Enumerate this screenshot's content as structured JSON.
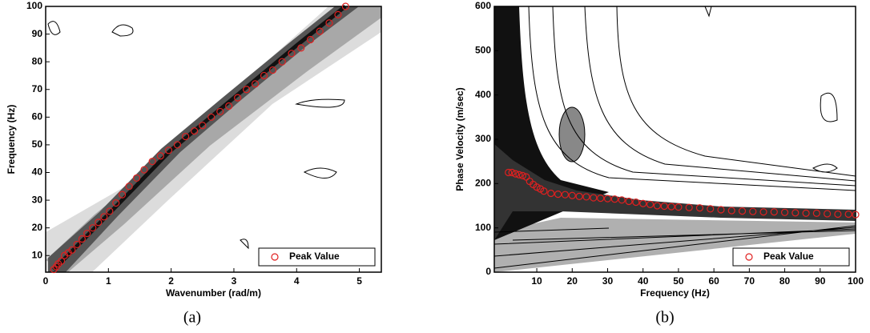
{
  "chart_data": [
    {
      "type": "scatter",
      "caption": "(a)",
      "xlabel": "Wavenumber (rad/m)",
      "ylabel": "Frequency (Hz)",
      "xlim": [
        0,
        5.35
      ],
      "ylim": [
        4,
        100
      ],
      "xticks": [
        0,
        1,
        2,
        3,
        4,
        5
      ],
      "yticks": [
        10,
        20,
        30,
        40,
        50,
        60,
        70,
        80,
        90,
        100
      ],
      "legend": "lower right",
      "series": [
        {
          "name": "Peak Value",
          "color": "#e02020",
          "x": [
            0.13,
            0.17,
            0.2,
            0.25,
            0.3,
            0.36,
            0.42,
            0.5,
            0.58,
            0.66,
            0.75,
            0.84,
            0.93,
            1.02,
            1.12,
            1.22,
            1.33,
            1.45,
            1.57,
            1.7,
            1.83,
            1.96,
            2.1,
            2.23,
            2.37,
            2.5,
            2.64,
            2.78,
            2.92,
            3.06,
            3.2,
            3.34,
            3.48,
            3.62,
            3.77,
            3.92,
            4.07,
            4.22,
            4.37,
            4.52,
            4.66,
            4.78
          ],
          "values": [
            5,
            6,
            7,
            8,
            10,
            11,
            12,
            14,
            16,
            18,
            20,
            22,
            24,
            26,
            29,
            32,
            35,
            38,
            41,
            44,
            46,
            48,
            50,
            53,
            55,
            57,
            60,
            62,
            64,
            67,
            70,
            72,
            75,
            77,
            80,
            83,
            85,
            88,
            91,
            94,
            97,
            100
          ]
        }
      ]
    },
    {
      "type": "scatter",
      "caption": "(b)",
      "xlabel": "Frequency (Hz)",
      "ylabel": "Phase Velocity (m/sec)",
      "xlim": [
        -2,
        100
      ],
      "ylim": [
        0,
        600
      ],
      "xticks": [
        10,
        20,
        30,
        40,
        50,
        60,
        70,
        80,
        90,
        100
      ],
      "yticks": [
        0,
        100,
        200,
        300,
        400,
        500,
        600
      ],
      "legend": "lower right",
      "series": [
        {
          "name": "Peak Value",
          "color": "#e02020",
          "x": [
            2,
            3,
            4,
            5,
            6,
            7,
            8,
            9,
            10,
            11,
            12,
            14,
            16,
            18,
            20,
            22,
            24,
            26,
            28,
            30,
            32,
            34,
            36,
            38,
            40,
            42,
            44,
            46,
            48,
            50,
            53,
            56,
            59,
            62,
            65,
            68,
            71,
            74,
            77,
            80,
            83,
            86,
            89,
            92,
            95,
            98,
            100
          ],
          "values": [
            225,
            225,
            222,
            220,
            218,
            215,
            205,
            198,
            192,
            188,
            183,
            178,
            176,
            175,
            173,
            171,
            170,
            168,
            167,
            166,
            165,
            163,
            160,
            158,
            155,
            153,
            150,
            149,
            148,
            147,
            146,
            145,
            143,
            141,
            139,
            138,
            137,
            136,
            136,
            135,
            134,
            133,
            133,
            132,
            131,
            131,
            130
          ]
        }
      ]
    }
  ]
}
